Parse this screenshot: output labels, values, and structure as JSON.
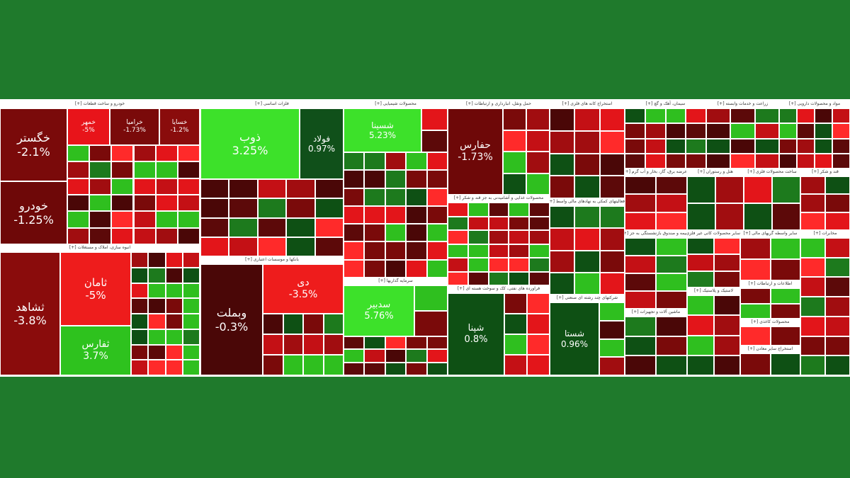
{
  "sectors": [
    {
      "title": "خودرو و ساخت قطعات [+]",
      "tiles": [
        {
          "symbol": "خگستر",
          "change": "-2.1%"
        },
        {
          "symbol": "خودرو",
          "change": "-1.25%"
        },
        {
          "symbol": "خمهر",
          "change": "-5%"
        },
        {
          "symbol": "خراميا",
          "change": "-1.73%"
        },
        {
          "symbol": "خسايا",
          "change": "-1.2%"
        }
      ]
    },
    {
      "title": "انبوه سازی، املاک و مستغلات [+]",
      "tiles": [
        {
          "symbol": "ثشاهد",
          "change": "-3.8%"
        },
        {
          "symbol": "ثامان",
          "change": "-5%"
        },
        {
          "symbol": "ثفارس",
          "change": "3.7%"
        }
      ]
    },
    {
      "title": "فلزات اساسی [+]",
      "tiles": [
        {
          "symbol": "ذوب",
          "change": "3.25%"
        },
        {
          "symbol": "فولاد",
          "change": "0.97%"
        }
      ]
    },
    {
      "title": "بانکها و موسسات اعتباری [+]",
      "tiles": [
        {
          "symbol": "وبملت",
          "change": "-0.3%"
        },
        {
          "symbol": "دی",
          "change": "-3.5%"
        }
      ]
    },
    {
      "title": "محصولات شیمیایی [+]",
      "tiles": [
        {
          "symbol": "شسینا",
          "change": "5.23%"
        }
      ]
    },
    {
      "title": "سرمایه گذاریها [+]",
      "tiles": [
        {
          "symbol": "سدبیر",
          "change": "5.76%"
        }
      ]
    },
    {
      "title": "حمل ونقل، انبارداری و ارتباطات [+]",
      "tiles": [
        {
          "symbol": "حفارس",
          "change": "-1.73%"
        }
      ]
    },
    {
      "title": "محصولات غذایی و آشامیدنی به جز قند و شکر [+]",
      "tiles": []
    },
    {
      "title": "فراورده های نفتی، کک و سوخت هسته ای [+]",
      "tiles": [
        {
          "symbol": "شپنا",
          "change": "0.8%"
        }
      ]
    },
    {
      "title": "استخراج کانه های فلزی [+]",
      "tiles": []
    },
    {
      "title": "فعالیتهای کمکی به نهادهای مالی واسط [+]",
      "tiles": []
    },
    {
      "title": "شرکتهای چند رشته ای صنعتی [+]",
      "tiles": [
        {
          "symbol": "شستا",
          "change": "0.96%"
        }
      ]
    },
    {
      "title": "سیمان، آهک و گچ [+]",
      "tiles": []
    },
    {
      "title": "زراعت و خدمات وابسته [+]",
      "tiles": []
    },
    {
      "title": "مواد و محصولات دارویی [+]",
      "tiles": []
    },
    {
      "title": "عرضه برق، گاز، بخار و آب گرم [+]",
      "tiles": []
    },
    {
      "title": "هتل و رستوران [+]",
      "tiles": []
    },
    {
      "title": "ساخت محصولات فلزی [+]",
      "tiles": []
    },
    {
      "title": "قند و شکر [+]",
      "tiles": []
    },
    {
      "title": "بیمه و صندوق بازنشستگی به جز [+]",
      "tiles": []
    },
    {
      "title": "ماشین آلات و تجهیزات [+]",
      "tiles": []
    },
    {
      "title": "سایر محصولات کانی غیر فلزی [+]",
      "tiles": []
    },
    {
      "title": "لاستیک و پلاستیک [+]",
      "tiles": []
    },
    {
      "title": "سایر واسطه گریهای مالی [+]",
      "tiles": []
    },
    {
      "title": "اطلاعات و ارتباطات [+]",
      "tiles": []
    },
    {
      "title": "محصولات کاغذی [+]",
      "tiles": []
    },
    {
      "title": "استخراج سایر معادن [+]",
      "tiles": []
    },
    {
      "title": "مخابرات [+]",
      "tiles": []
    }
  ]
}
